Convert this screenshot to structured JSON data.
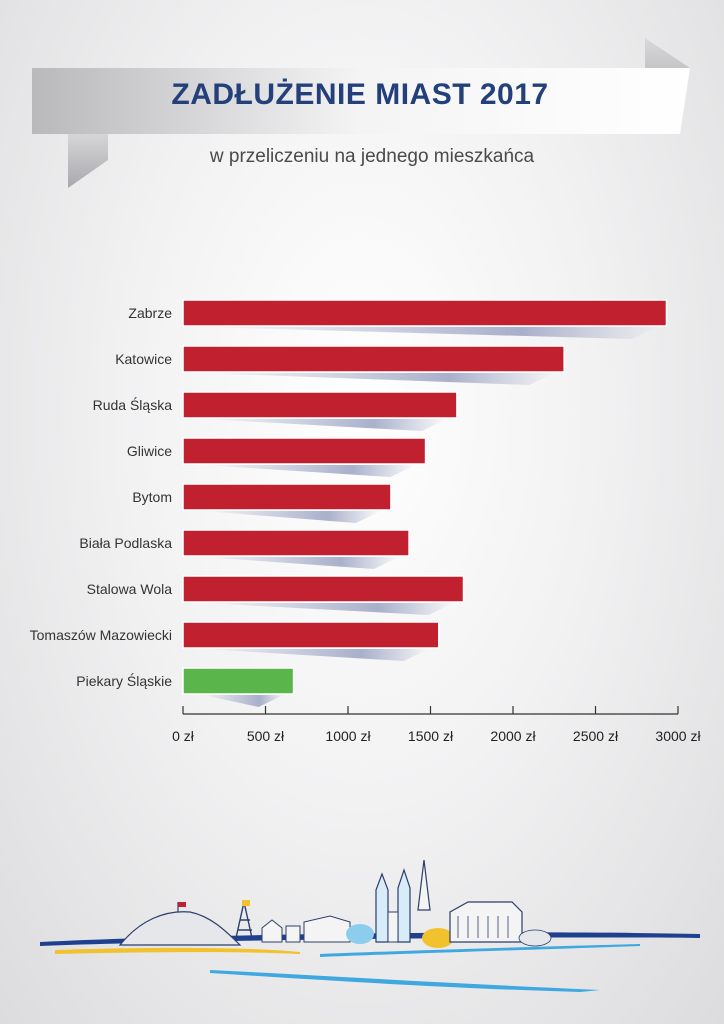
{
  "header": {
    "title": "ZADŁUŻENIE MIAST 2017",
    "subtitle": "w przeliczeniu na jednego mieszkańca"
  },
  "colors": {
    "bar_default": "#c1202e",
    "bar_highlight": "#5ab64a",
    "title": "#24407a",
    "axis": "#333333"
  },
  "chart_data": {
    "type": "bar",
    "orientation": "horizontal",
    "title": "ZADŁUŻENIE MIAST 2017",
    "subtitle": "w przeliczeniu na jednego mieszkańca",
    "categories": [
      "Zabrze",
      "Katowice",
      "Ruda Śląska",
      "Gliwice",
      "Bytom",
      "Biała Podlaska",
      "Stalowa Wola",
      "Tomaszów Mazowiecki",
      "Piekary Śląskie"
    ],
    "values": [
      2930,
      2310,
      1660,
      1470,
      1260,
      1370,
      1700,
      1550,
      670
    ],
    "highlight": "Piekary Śląskie",
    "xlim": [
      0,
      3000
    ],
    "xticks": [
      0,
      500,
      1000,
      1500,
      2000,
      2500,
      3000
    ],
    "xtick_labels": [
      "0 zł",
      "500 zł",
      "1000 zł",
      "1500 zł",
      "2000 zł",
      "2500 zł",
      "3000 zł"
    ],
    "xlabel": "",
    "ylabel": "",
    "grid": false,
    "legend": "none"
  }
}
